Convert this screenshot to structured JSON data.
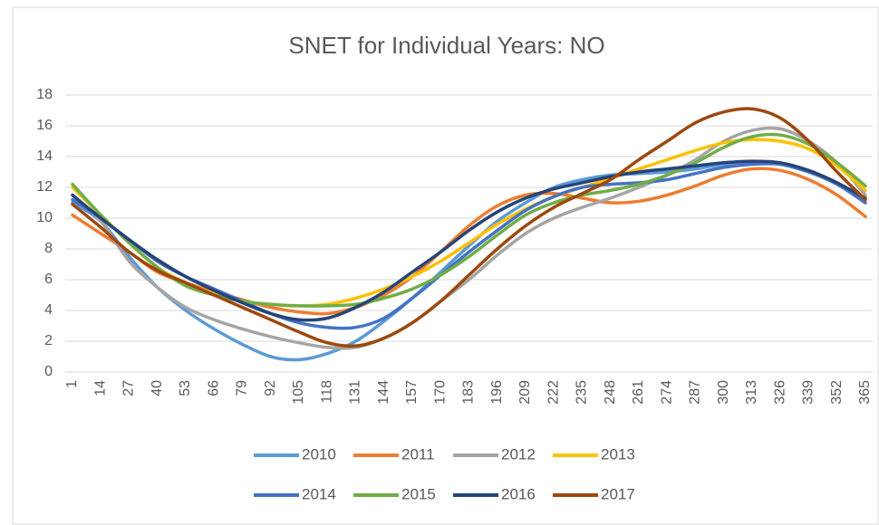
{
  "chart_data": {
    "type": "line",
    "title": "SNET for Individual Years: NO",
    "categories": [
      "1",
      "14",
      "27",
      "40",
      "53",
      "66",
      "79",
      "92",
      "105",
      "118",
      "131",
      "144",
      "157",
      "170",
      "183",
      "196",
      "209",
      "222",
      "235",
      "248",
      "261",
      "274",
      "287",
      "300",
      "313",
      "326",
      "339",
      "352",
      "365"
    ],
    "ylim": [
      0,
      18
    ],
    "yticks": [
      0,
      2,
      4,
      6,
      8,
      10,
      12,
      14,
      16,
      18
    ],
    "grid": true,
    "legend": "bottom",
    "series": [
      {
        "name": "2010",
        "color": "#5b9bd5",
        "values": [
          11,
          9.8,
          7.5,
          5.5,
          4,
          2.8,
          1.8,
          1.0,
          0.8,
          1.2,
          2.0,
          3.3,
          4.8,
          6.5,
          8.2,
          9.8,
          11,
          12,
          12.5,
          12.8,
          12.9,
          13.0,
          13.2,
          13.5,
          13.6,
          13.5,
          13,
          12.3,
          11
        ]
      },
      {
        "name": "2011",
        "color": "#ed7d31",
        "values": [
          10.2,
          9.0,
          7.8,
          6.5,
          5.8,
          5.2,
          4.7,
          4.2,
          3.9,
          3.8,
          4.2,
          5.0,
          6.2,
          7.8,
          9.5,
          10.8,
          11.5,
          11.6,
          11.3,
          11.0,
          11.1,
          11.5,
          12.1,
          12.8,
          13.2,
          13.1,
          12.5,
          11.5,
          10.1
        ]
      },
      {
        "name": "2012",
        "color": "#a5a5a5",
        "values": [
          11.5,
          9.8,
          7.2,
          5.5,
          4.2,
          3.4,
          2.8,
          2.3,
          1.9,
          1.6,
          1.6,
          2.2,
          3.2,
          4.6,
          6.0,
          7.6,
          9.0,
          10.0,
          10.7,
          11.3,
          12.0,
          12.8,
          13.8,
          15.0,
          15.7,
          15.8,
          15.0,
          13.6,
          11.5
        ]
      },
      {
        "name": "2013",
        "color": "#ffc000",
        "values": [
          12.0,
          10.2,
          8.4,
          6.8,
          5.8,
          5.1,
          4.6,
          4.4,
          4.3,
          4.4,
          4.8,
          5.4,
          6.2,
          7.2,
          8.4,
          9.6,
          10.6,
          11.4,
          12.0,
          12.6,
          13.2,
          13.8,
          14.4,
          14.9,
          15.1,
          15.0,
          14.5,
          13.4,
          11.8
        ]
      },
      {
        "name": "2014",
        "color": "#4472c4",
        "values": [
          11.2,
          10.0,
          8.6,
          7.2,
          6.2,
          5.4,
          4.6,
          3.8,
          3.2,
          2.9,
          2.9,
          3.5,
          4.8,
          6.3,
          7.8,
          9.2,
          10.5,
          11.4,
          12.0,
          12.2,
          12.3,
          12.5,
          12.9,
          13.3,
          13.5,
          13.5,
          13.0,
          12.2,
          11.0
        ]
      },
      {
        "name": "2015",
        "color": "#70ad47",
        "values": [
          12.2,
          10.2,
          8.4,
          6.8,
          5.6,
          5.0,
          4.6,
          4.4,
          4.3,
          4.3,
          4.4,
          4.8,
          5.4,
          6.3,
          7.5,
          8.9,
          10.2,
          11.0,
          11.5,
          11.8,
          12.2,
          12.8,
          13.6,
          14.6,
          15.3,
          15.4,
          14.8,
          13.6,
          12.1
        ]
      },
      {
        "name": "2016",
        "color": "#264478",
        "values": [
          11.5,
          10.0,
          8.6,
          7.3,
          6.2,
          5.3,
          4.5,
          3.8,
          3.4,
          3.5,
          4.2,
          5.2,
          6.5,
          7.8,
          9.2,
          10.4,
          11.3,
          11.9,
          12.3,
          12.7,
          13.0,
          13.2,
          13.4,
          13.6,
          13.7,
          13.6,
          13.1,
          12.3,
          11.3
        ]
      },
      {
        "name": "2017",
        "color": "#9e480e",
        "values": [
          10.9,
          9.4,
          7.8,
          6.6,
          5.8,
          5.0,
          4.2,
          3.4,
          2.6,
          1.9,
          1.7,
          2.2,
          3.2,
          4.6,
          6.3,
          8.0,
          9.5,
          10.7,
          11.6,
          12.5,
          13.8,
          15.0,
          16.2,
          16.9,
          17.1,
          16.5,
          15.0,
          13.0,
          11.2
        ]
      }
    ]
  }
}
